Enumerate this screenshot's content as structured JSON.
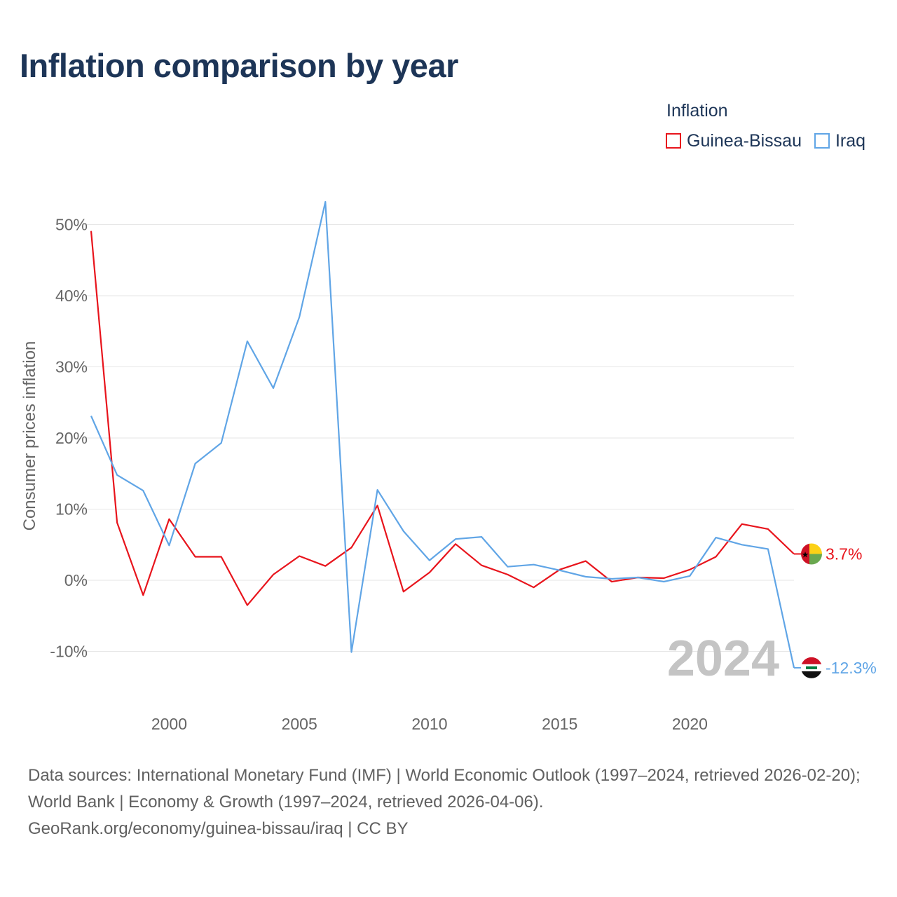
{
  "page": {
    "title": "Inflation comparison by year"
  },
  "legend": {
    "title": "Inflation",
    "items": [
      {
        "label": "Guinea-Bissau",
        "color": "#e8141c"
      },
      {
        "label": "Iraq",
        "color": "#60a5e6"
      }
    ]
  },
  "chart_data": {
    "type": "line",
    "title": "Inflation comparison by year",
    "xlabel": "",
    "ylabel": "Consumer prices inflation",
    "xlim": [
      1997,
      2024
    ],
    "ylim": [
      -13,
      53
    ],
    "x_ticks": [
      2000,
      2005,
      2010,
      2015,
      2020
    ],
    "y_ticks": [
      -10,
      0,
      10,
      20,
      30,
      40,
      50
    ],
    "y_tick_labels": [
      "-10%",
      "0%",
      "10%",
      "20%",
      "30%",
      "40%",
      "50%"
    ],
    "grid": true,
    "year_watermark": "2024",
    "x": [
      1997,
      1998,
      1999,
      2000,
      2001,
      2002,
      2003,
      2004,
      2005,
      2006,
      2007,
      2008,
      2009,
      2010,
      2011,
      2012,
      2013,
      2014,
      2015,
      2016,
      2017,
      2018,
      2019,
      2020,
      2021,
      2022,
      2023,
      2024
    ],
    "series": [
      {
        "name": "Guinea-Bissau",
        "color": "#e8141c",
        "values": [
          49.1,
          8.1,
          -2.1,
          8.6,
          3.3,
          3.3,
          -3.5,
          0.8,
          3.4,
          2.0,
          4.6,
          10.5,
          -1.6,
          1.1,
          5.1,
          2.1,
          0.8,
          -1.0,
          1.5,
          2.7,
          -0.2,
          0.4,
          0.3,
          1.5,
          3.3,
          7.9,
          7.2,
          3.7
        ],
        "end_label": "3.7%",
        "flag": "guinea-bissau-flag"
      },
      {
        "name": "Iraq",
        "color": "#60a5e6",
        "values": [
          23.1,
          14.8,
          12.6,
          4.9,
          16.4,
          19.3,
          33.6,
          27.0,
          37.0,
          53.2,
          -10.1,
          12.7,
          6.9,
          2.8,
          5.8,
          6.1,
          1.9,
          2.2,
          1.4,
          0.5,
          0.2,
          0.4,
          -0.2,
          0.6,
          6.0,
          5.0,
          4.4,
          -12.3
        ],
        "end_label": "-12.3%",
        "flag": "iraq-flag"
      }
    ]
  },
  "footer": {
    "sources": "Data sources: International Monetary Fund (IMF) | World Economic Outlook (1997–2024, retrieved 2026-02-20); World Bank | Economy & Growth (1997–2024, retrieved 2026-04-06).",
    "attribution": "GeoRank.org/economy/guinea-bissau/iraq | CC BY"
  }
}
